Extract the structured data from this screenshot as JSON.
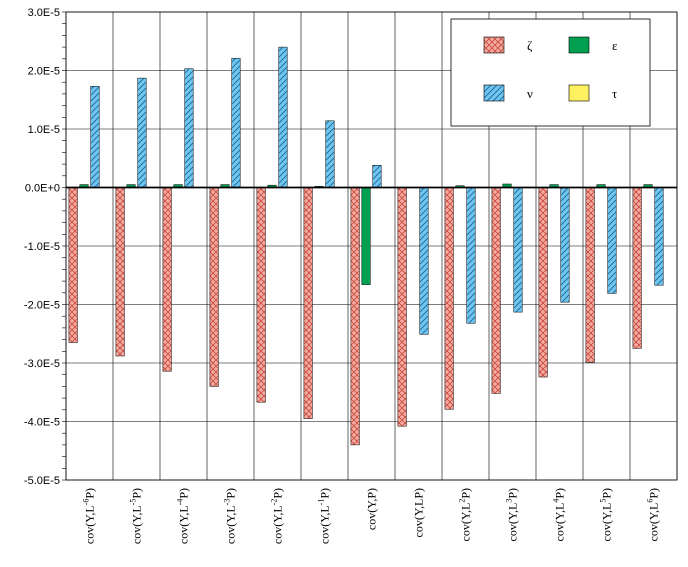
{
  "chart_data": {
    "type": "bar",
    "title": "",
    "xlabel": "",
    "ylabel": "",
    "ylim": [
      -5e-05,
      3e-05
    ],
    "yticks": [
      "3.0E-5",
      "2.0E-5",
      "1.0E-5",
      "0.0E+0",
      "-1.0E-5",
      "-2.0E-5",
      "-3.0E-5",
      "-4.0E-5",
      "-5.0E-5"
    ],
    "ytick_values": [
      3e-05,
      2e-05,
      1e-05,
      0,
      -1e-05,
      -2e-05,
      -3e-05,
      -4e-05,
      -5e-05
    ],
    "grid": true,
    "legend_position": "top-right",
    "categories": [
      {
        "base": "cov(Y,L",
        "sup": "-6",
        "tail": "P)"
      },
      {
        "base": "cov(Y,L",
        "sup": "-5",
        "tail": "P)"
      },
      {
        "base": "cov(Y,L",
        "sup": "-4",
        "tail": "P)"
      },
      {
        "base": "cov(Y,L",
        "sup": "-3",
        "tail": "P)"
      },
      {
        "base": "cov(Y,L",
        "sup": "-2",
        "tail": "P)"
      },
      {
        "base": "cov(Y,L",
        "sup": "-1",
        "tail": "P)"
      },
      {
        "base": "cov(Y,P)",
        "sup": "",
        "tail": ""
      },
      {
        "base": "cov(Y,LP)",
        "sup": "",
        "tail": ""
      },
      {
        "base": "cov(Y,L",
        "sup": "2",
        "tail": "P)"
      },
      {
        "base": "cov(Y,L",
        "sup": "3",
        "tail": "P)"
      },
      {
        "base": "cov(Y,L",
        "sup": "4",
        "tail": "P)"
      },
      {
        "base": "cov(Y,L",
        "sup": "5",
        "tail": "P)"
      },
      {
        "base": "cov(Y,L",
        "sup": "6",
        "tail": "P)"
      }
    ],
    "series": [
      {
        "name": "ζ",
        "fill": "#f4a9a0",
        "pattern": "crosshatch",
        "values": [
          -2.65e-05,
          -2.88e-05,
          -3.14e-05,
          -3.4e-05,
          -3.67e-05,
          -3.95e-05,
          -4.4e-05,
          -4.08e-05,
          -3.79e-05,
          -3.52e-05,
          -3.24e-05,
          -2.99e-05,
          -2.75e-05
        ]
      },
      {
        "name": "ε",
        "fill": "#00a050",
        "pattern": "solid",
        "values": [
          5e-07,
          5e-07,
          5e-07,
          5e-07,
          4e-07,
          2e-07,
          -1.66e-05,
          0.0,
          3e-07,
          6e-07,
          5e-07,
          5e-07,
          5e-07
        ]
      },
      {
        "name": "ν",
        "fill": "#6ec6f0",
        "pattern": "diagonal",
        "values": [
          1.73e-05,
          1.87e-05,
          2.03e-05,
          2.21e-05,
          2.4e-05,
          1.14e-05,
          3.8e-06,
          -2.51e-05,
          -2.32e-05,
          -2.13e-05,
          -1.96e-05,
          -1.81e-05,
          -1.67e-05
        ]
      },
      {
        "name": "τ",
        "fill": "#fff060",
        "pattern": "solid",
        "values": [
          0,
          0,
          0,
          0,
          0,
          0,
          0,
          0,
          0,
          0,
          0,
          0,
          0
        ]
      }
    ]
  }
}
